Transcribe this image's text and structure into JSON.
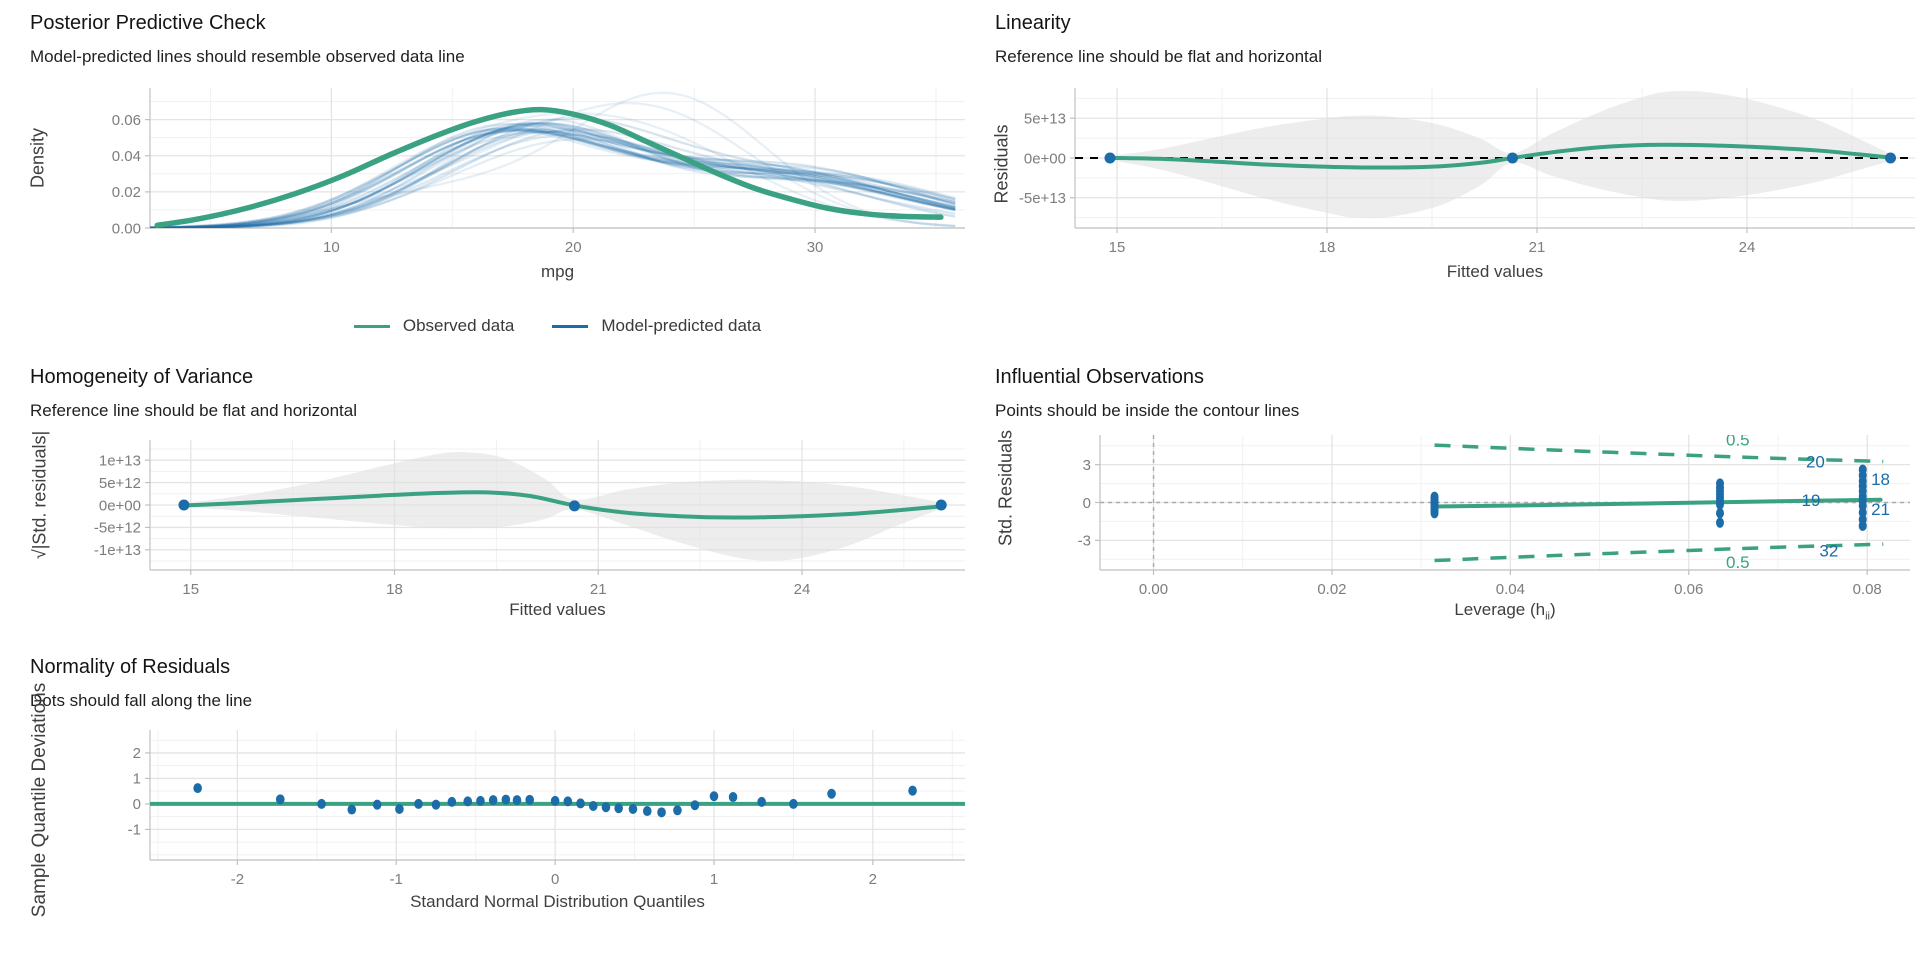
{
  "colors": {
    "green": "#3aa183",
    "blue": "#1b6ca8",
    "band": "#dedede",
    "grid_major": "#e4e4e4",
    "grid_minor": "#f1f1f1",
    "axis": "#c0c0c0",
    "tick_label": "#7d7d7d",
    "axis_title": "#3f3f3f",
    "dashed_black": "#000000",
    "dashed_gray": "#ababab"
  },
  "chart_data": [
    {
      "id": "ppc",
      "type": "line",
      "title": "Posterior Predictive Check",
      "subtitle": "Model-predicted lines should resemble observed data line",
      "xlabel": "mpg",
      "ylabel": "Density",
      "xlim": [
        2.5,
        36.2
      ],
      "ylim": [
        0,
        0.0775
      ],
      "x_ticks": [
        {
          "v": 10,
          "l": "10"
        },
        {
          "v": 20,
          "l": "20"
        },
        {
          "v": 30,
          "l": "30"
        }
      ],
      "x_minor": [
        5,
        15,
        25,
        35
      ],
      "y_ticks": [
        {
          "v": 0,
          "l": "0.00"
        },
        {
          "v": 0.02,
          "l": "0.02"
        },
        {
          "v": 0.04,
          "l": "0.04"
        },
        {
          "v": 0.06,
          "l": "0.06"
        }
      ],
      "y_minor": [
        0.01,
        0.03,
        0.05,
        0.07
      ],
      "legend": [
        {
          "label": "Observed data",
          "color": "green"
        },
        {
          "label": "Model-predicted data",
          "color": "blue"
        }
      ],
      "observed_curve": [
        [
          2.8,
          0.0015
        ],
        [
          4.5,
          0.005
        ],
        [
          6.5,
          0.011
        ],
        [
          8.5,
          0.019
        ],
        [
          10.5,
          0.029
        ],
        [
          12.5,
          0.041
        ],
        [
          14.5,
          0.052
        ],
        [
          16,
          0.059
        ],
        [
          17.5,
          0.064
        ],
        [
          18.7,
          0.0655
        ],
        [
          20,
          0.063
        ],
        [
          21.5,
          0.057
        ],
        [
          23,
          0.048
        ],
        [
          24.5,
          0.039
        ],
        [
          26,
          0.03
        ],
        [
          27.5,
          0.022
        ],
        [
          29,
          0.016
        ],
        [
          30.5,
          0.011
        ],
        [
          32,
          0.008
        ],
        [
          33.5,
          0.0065
        ],
        [
          35.2,
          0.006
        ]
      ],
      "predicted_curves_format": "[mean1, sd1, amp1, mean2, sd2, amp2, opacity]",
      "predicted_curves": [
        [
          17.0,
          4.2,
          0.05,
          27.0,
          5.0,
          0.03,
          0.2
        ],
        [
          17.5,
          4.0,
          0.053,
          28.0,
          5.5,
          0.028,
          0.16
        ],
        [
          18.0,
          4.5,
          0.05,
          29.0,
          5.0,
          0.033,
          0.18
        ],
        [
          18.5,
          4.3,
          0.055,
          30.0,
          5.5,
          0.025,
          0.14
        ],
        [
          16.5,
          4.0,
          0.048,
          26.0,
          6.0,
          0.03,
          0.16
        ],
        [
          19.0,
          4.6,
          0.052,
          30.0,
          4.5,
          0.03,
          0.15
        ],
        [
          17.2,
          4.4,
          0.051,
          28.5,
          5.2,
          0.03,
          0.22
        ],
        [
          18.2,
          4.1,
          0.056,
          29.5,
          5.0,
          0.026,
          0.13
        ],
        [
          16.8,
          4.3,
          0.047,
          27.5,
          5.8,
          0.032,
          0.17
        ],
        [
          19.5,
          4.8,
          0.05,
          31.0,
          4.8,
          0.027,
          0.15
        ],
        [
          17.8,
          4.2,
          0.052,
          28.0,
          5.4,
          0.029,
          0.19
        ],
        [
          18.8,
          4.4,
          0.053,
          30.5,
          5.2,
          0.024,
          0.14
        ],
        [
          16.2,
          4.1,
          0.046,
          26.5,
          6.2,
          0.031,
          0.12
        ],
        [
          19.2,
          4.5,
          0.054,
          29.0,
          5.6,
          0.028,
          0.18
        ],
        [
          17.4,
          4.3,
          0.049,
          27.8,
          5.3,
          0.033,
          0.2
        ],
        [
          18.4,
          4.2,
          0.051,
          30.0,
          5.0,
          0.029,
          0.16
        ],
        [
          20.0,
          5.0,
          0.048,
          31.5,
          4.6,
          0.024,
          0.12
        ],
        [
          17.0,
          4.5,
          0.052,
          28.2,
          5.5,
          0.027,
          0.15
        ],
        [
          18.6,
          4.0,
          0.057,
          29.2,
          5.1,
          0.025,
          0.13
        ],
        [
          16.6,
          4.2,
          0.049,
          27.2,
          5.7,
          0.031,
          0.18
        ],
        [
          24.0,
          4.0,
          0.072,
          15.0,
          4.5,
          0.02,
          0.1
        ],
        [
          23.0,
          4.5,
          0.064,
          15.5,
          4.2,
          0.022,
          0.1
        ],
        [
          22.0,
          5.0,
          0.055,
          15.0,
          4.0,
          0.028,
          0.1
        ],
        [
          19.8,
          4.7,
          0.052,
          30.8,
          5.0,
          0.026,
          0.17
        ],
        [
          18.1,
          4.35,
          0.054,
          28.8,
          5.3,
          0.028,
          0.21
        ],
        [
          17.6,
          4.15,
          0.05,
          27.6,
          5.45,
          0.031,
          0.19
        ]
      ]
    },
    {
      "id": "linearity",
      "type": "line",
      "title": "Linearity",
      "subtitle": "Reference line should be flat and horizontal",
      "xlabel": "Fitted values",
      "ylabel": "Residuals",
      "y_unit": "1e13",
      "xlim": [
        14.4,
        26.4
      ],
      "ylim": [
        -8.8,
        8.8
      ],
      "x_ticks": [
        {
          "v": 15,
          "l": "15"
        },
        {
          "v": 18,
          "l": "18"
        },
        {
          "v": 21,
          "l": "21"
        },
        {
          "v": 24,
          "l": "24"
        }
      ],
      "x_minor": [
        16.5,
        19.5,
        22.5,
        25.5
      ],
      "y_ticks": [
        {
          "v": 5,
          "l": "5e+13"
        },
        {
          "v": 0,
          "l": "0e+00"
        },
        {
          "v": -5,
          "l": "-5e+13"
        }
      ],
      "y_minor": [
        7.5,
        2.5,
        -2.5,
        -7.5
      ],
      "ref_line": {
        "y": 0,
        "style": "dashed-black"
      },
      "line": [
        [
          14.9,
          0.02
        ],
        [
          15.6,
          -0.1
        ],
        [
          16.4,
          -0.45
        ],
        [
          17.2,
          -0.85
        ],
        [
          18.0,
          -1.1
        ],
        [
          18.8,
          -1.2
        ],
        [
          19.6,
          -1.05
        ],
        [
          20.2,
          -0.6
        ],
        [
          20.65,
          0.0
        ],
        [
          21.2,
          0.7
        ],
        [
          21.9,
          1.35
        ],
        [
          22.6,
          1.65
        ],
        [
          23.4,
          1.6
        ],
        [
          24.2,
          1.35
        ],
        [
          25.0,
          0.95
        ],
        [
          25.6,
          0.45
        ],
        [
          26.05,
          0.05
        ]
      ],
      "band": [
        [
          14.9,
          0.25,
          -0.25
        ],
        [
          15.6,
          1.1,
          -1.4
        ],
        [
          16.4,
          2.6,
          -3.3
        ],
        [
          17.2,
          4.0,
          -5.3
        ],
        [
          18.0,
          5.0,
          -6.9
        ],
        [
          18.4,
          5.3,
          -7.5
        ],
        [
          18.9,
          5.2,
          -7.4
        ],
        [
          19.6,
          4.2,
          -6.0
        ],
        [
          20.2,
          2.4,
          -3.4
        ],
        [
          20.65,
          0.6,
          -0.6
        ],
        [
          21.2,
          3.0,
          -2.2
        ],
        [
          21.9,
          5.8,
          -3.9
        ],
        [
          22.6,
          7.9,
          -5.1
        ],
        [
          23.0,
          8.4,
          -5.4
        ],
        [
          23.5,
          8.2,
          -5.2
        ],
        [
          24.2,
          7.0,
          -4.4
        ],
        [
          25.0,
          4.8,
          -3.0
        ],
        [
          25.6,
          2.4,
          -1.5
        ],
        [
          26.05,
          0.5,
          -0.4
        ]
      ],
      "points": [
        [
          14.9,
          0
        ],
        [
          20.65,
          0
        ],
        [
          26.05,
          0
        ]
      ]
    },
    {
      "id": "homogeneity",
      "type": "line",
      "title": "Homogeneity of Variance",
      "subtitle": "Reference line should be flat and horizontal",
      "xlabel": "Fitted values",
      "ylabel": "√|Std. residuals|",
      "y_unit": "1e12",
      "xlim": [
        14.4,
        26.4
      ],
      "ylim": [
        -14.5,
        14.5
      ],
      "x_ticks": [
        {
          "v": 15,
          "l": "15"
        },
        {
          "v": 18,
          "l": "18"
        },
        {
          "v": 21,
          "l": "21"
        },
        {
          "v": 24,
          "l": "24"
        }
      ],
      "x_minor": [
        16.5,
        19.5,
        22.5,
        25.5
      ],
      "y_ticks": [
        {
          "v": 10,
          "l": "1e+13"
        },
        {
          "v": 5,
          "l": "5e+12"
        },
        {
          "v": 0,
          "l": "0e+00"
        },
        {
          "v": -5,
          "l": "-5e+12"
        },
        {
          "v": -10,
          "l": "-1e+13"
        }
      ],
      "y_minor": [
        12.5,
        7.5,
        2.5,
        -2.5,
        -7.5,
        -12.5
      ],
      "line": [
        [
          14.9,
          -0.1
        ],
        [
          15.8,
          0.5
        ],
        [
          16.8,
          1.3
        ],
        [
          17.8,
          2.1
        ],
        [
          18.7,
          2.7
        ],
        [
          19.4,
          2.8
        ],
        [
          20.0,
          2.0
        ],
        [
          20.65,
          -0.1
        ],
        [
          21.4,
          -1.7
        ],
        [
          22.2,
          -2.5
        ],
        [
          23.0,
          -2.8
        ],
        [
          23.8,
          -2.6
        ],
        [
          24.7,
          -2.0
        ],
        [
          25.4,
          -1.2
        ],
        [
          26.05,
          -0.3
        ]
      ],
      "band": [
        [
          14.9,
          0.4,
          -0.4
        ],
        [
          15.8,
          2.2,
          -1.4
        ],
        [
          16.8,
          5.0,
          -2.8
        ],
        [
          17.8,
          8.6,
          -4.2
        ],
        [
          18.5,
          11.0,
          -5.0
        ],
        [
          19.0,
          11.8,
          -5.2
        ],
        [
          19.6,
          10.5,
          -4.8
        ],
        [
          20.2,
          6.0,
          -3.2
        ],
        [
          20.65,
          1.2,
          -1.0
        ],
        [
          21.4,
          3.4,
          -4.4
        ],
        [
          22.2,
          5.0,
          -8.4
        ],
        [
          23.0,
          5.6,
          -11.6
        ],
        [
          23.5,
          5.5,
          -12.4
        ],
        [
          24.0,
          5.2,
          -11.8
        ],
        [
          24.7,
          4.2,
          -9.0
        ],
        [
          25.4,
          2.4,
          -4.6
        ],
        [
          26.05,
          0.6,
          -0.8
        ]
      ],
      "points": [
        [
          14.9,
          0
        ],
        [
          20.65,
          -0.2
        ],
        [
          26.05,
          0
        ]
      ]
    },
    {
      "id": "influential",
      "type": "scatter",
      "title": "Influential Observations",
      "subtitle": "Points should be inside the contour lines",
      "xlabel_pre": "Leverage (h",
      "xlabel_sub": "ii",
      "xlabel_post": ")",
      "ylabel": "Std. Residuals",
      "xlim": [
        -0.006,
        0.0848
      ],
      "ylim": [
        -5.35,
        5.35
      ],
      "x_ticks": [
        {
          "v": 0,
          "l": "0.00"
        },
        {
          "v": 0.02,
          "l": "0.02"
        },
        {
          "v": 0.04,
          "l": "0.04"
        },
        {
          "v": 0.06,
          "l": "0.06"
        },
        {
          "v": 0.08,
          "l": "0.08"
        }
      ],
      "x_minor": [
        0.01,
        0.03,
        0.05,
        0.07
      ],
      "y_ticks": [
        {
          "v": 3,
          "l": "3"
        },
        {
          "v": 0,
          "l": "0"
        },
        {
          "v": -3,
          "l": "-3"
        }
      ],
      "y_minor": [
        4.5,
        1.5,
        -1.5,
        -4.5
      ],
      "vline": 0,
      "hline": 0,
      "solid_line": [
        [
          0.0315,
          -0.32
        ],
        [
          0.045,
          -0.19
        ],
        [
          0.06,
          -0.02
        ],
        [
          0.07,
          0.1
        ],
        [
          0.0815,
          0.22
        ]
      ],
      "contour_upper": [
        [
          0.0315,
          4.55
        ],
        [
          0.045,
          4.15
        ],
        [
          0.06,
          3.75
        ],
        [
          0.07,
          3.5
        ],
        [
          0.0818,
          3.25
        ]
      ],
      "contour_lower": [
        [
          0.0315,
          -4.6
        ],
        [
          0.045,
          -4.2
        ],
        [
          0.06,
          -3.8
        ],
        [
          0.07,
          -3.55
        ],
        [
          0.0818,
          -3.3
        ]
      ],
      "contour_labels": [
        {
          "text": "0.5",
          "x": 0.0655,
          "y": 5.0
        },
        {
          "text": "0.5",
          "x": 0.0655,
          "y": -4.72
        }
      ],
      "clusters": [
        {
          "x": 0.0315,
          "ys": [
            0.45,
            0.28,
            0.12,
            -0.02,
            -0.18,
            -0.35,
            -0.52,
            -0.68,
            -0.85
          ]
        },
        {
          "x": 0.0635,
          "ys": [
            1.5,
            1.18,
            0.9,
            0.62,
            0.35,
            0.1,
            -0.15,
            -0.85,
            -1.6
          ]
        },
        {
          "x": 0.0795,
          "ys": [
            2.6,
            2.15,
            1.7,
            1.3,
            0.9,
            0.5,
            0.12,
            -0.25,
            -0.8,
            -1.35,
            -1.85
          ]
        }
      ],
      "point_labels": [
        {
          "text": "20",
          "x": 0.0742,
          "y": 3.25
        },
        {
          "text": "18",
          "x": 0.0815,
          "y": 1.85
        },
        {
          "text": "19",
          "x": 0.0737,
          "y": 0.18
        },
        {
          "text": "21",
          "x": 0.0815,
          "y": -0.5
        },
        {
          "text": "32",
          "x": 0.0757,
          "y": -3.8
        }
      ]
    },
    {
      "id": "qq",
      "type": "scatter",
      "title": "Normality of Residuals",
      "subtitle": "Dots should fall along the line",
      "xlabel": "Standard Normal Distribution Quantiles",
      "ylabel": "Sample Quantile Deviations",
      "xlim": [
        -2.55,
        2.58
      ],
      "ylim": [
        -2.2,
        2.9
      ],
      "x_ticks": [
        {
          "v": -2,
          "l": "-2"
        },
        {
          "v": -1,
          "l": "-1"
        },
        {
          "v": 0,
          "l": "0"
        },
        {
          "v": 1,
          "l": "1"
        },
        {
          "v": 2,
          "l": "2"
        }
      ],
      "x_minor": [
        -2.5,
        -1.5,
        -0.5,
        0.5,
        1.5,
        2.5
      ],
      "y_ticks": [
        {
          "v": 2,
          "l": "2"
        },
        {
          "v": 1,
          "l": "1"
        },
        {
          "v": 0,
          "l": "0"
        },
        {
          "v": -1,
          "l": "-1"
        }
      ],
      "y_minor": [
        2.5,
        1.5,
        0.5,
        -0.5,
        -1.5,
        -2
      ],
      "ref_line": {
        "y": 0,
        "style": "solid-green"
      },
      "points": [
        [
          -2.25,
          0.62
        ],
        [
          -1.73,
          0.18
        ],
        [
          -1.47,
          0.0
        ],
        [
          -1.28,
          -0.22
        ],
        [
          -1.12,
          -0.03
        ],
        [
          -0.98,
          -0.2
        ],
        [
          -0.86,
          0.0
        ],
        [
          -0.75,
          -0.03
        ],
        [
          -0.65,
          0.08
        ],
        [
          -0.55,
          0.1
        ],
        [
          -0.47,
          0.12
        ],
        [
          -0.39,
          0.15
        ],
        [
          -0.31,
          0.17
        ],
        [
          -0.24,
          0.15
        ],
        [
          -0.16,
          0.16
        ],
        [
          0.0,
          0.12
        ],
        [
          0.08,
          0.1
        ],
        [
          0.16,
          0.02
        ],
        [
          0.24,
          -0.08
        ],
        [
          0.32,
          -0.13
        ],
        [
          0.4,
          -0.17
        ],
        [
          0.49,
          -0.2
        ],
        [
          0.58,
          -0.28
        ],
        [
          0.67,
          -0.33
        ],
        [
          0.77,
          -0.25
        ],
        [
          0.88,
          -0.05
        ],
        [
          1.0,
          0.3
        ],
        [
          1.12,
          0.27
        ],
        [
          1.3,
          0.08
        ],
        [
          1.5,
          0.0
        ],
        [
          1.74,
          0.4
        ],
        [
          2.25,
          0.52
        ]
      ]
    }
  ]
}
